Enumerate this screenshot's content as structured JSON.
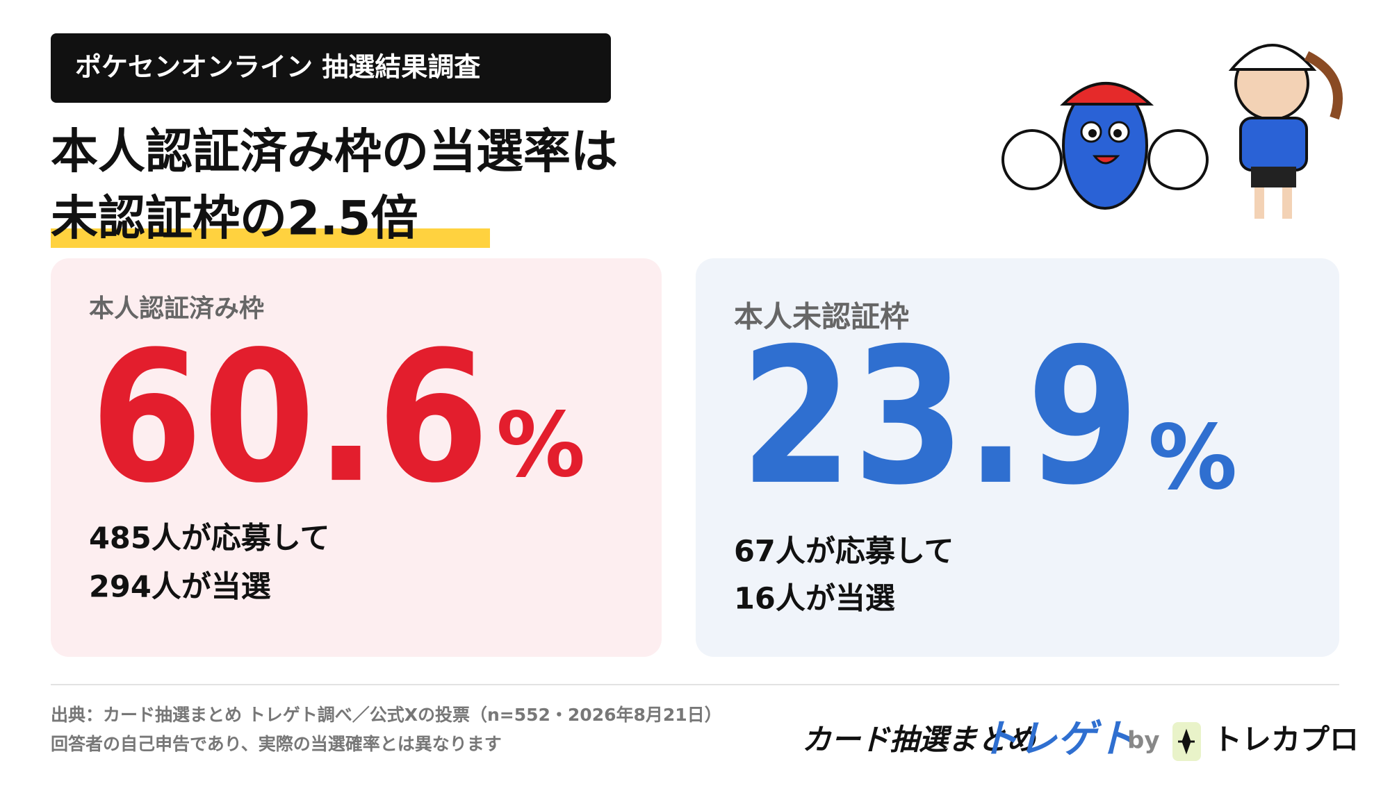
{
  "header": {
    "badge": "ポケセンオンライン 抽選結果調査",
    "headline": [
      "本人認証済み枠の当選率は",
      "未認証枠の2.5倍"
    ]
  },
  "cards": [
    {
      "label": "本人認証済み枠",
      "value": "60.6",
      "unit": "%",
      "lines": [
        "485人が応募して",
        "294人が当選"
      ]
    },
    {
      "label": "本人未認証枠",
      "value": "23.9",
      "unit": "%",
      "lines": [
        "67人が応募して",
        "16人が当選"
      ]
    }
  ],
  "footer": {
    "notes": [
      "出典：カード抽選まとめ トレゲト調べ／公式Xの投票（n=552・2026年8月21日）",
      "回答者の自己申告であり、実際の当選確率とは異なります"
    ],
    "brand": "カード抽選まとめ",
    "brand_name": "トレゲト",
    "by": "by",
    "partner": "トレカプロ"
  }
}
